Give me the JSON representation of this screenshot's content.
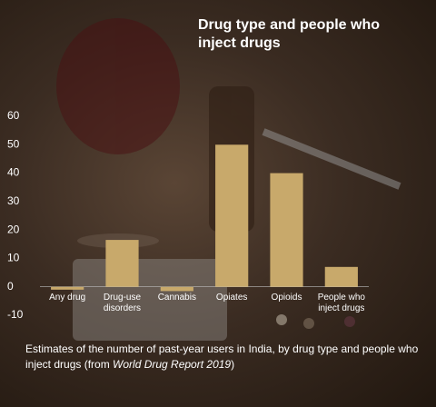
{
  "chart_data": {
    "type": "bar",
    "title": "Drug type and people who inject drugs",
    "caption": [
      "Estimates of the number of past-year users in India, by drug type and people who inject drugs (from ",
      "World Drug Report 2019",
      ")"
    ],
    "categories": [
      "Any drug",
      "Drug-use disorders",
      "Cannabis",
      "Opiates",
      "Opioids",
      "People who inject drugs"
    ],
    "values": [
      -1,
      16.5,
      -1.5,
      50,
      40,
      7
    ],
    "color": "#c8a96b",
    "ylim": [
      -10,
      60
    ],
    "yticks": [
      -10,
      0,
      10,
      20,
      30,
      40,
      50,
      60
    ],
    "grid": false
  }
}
